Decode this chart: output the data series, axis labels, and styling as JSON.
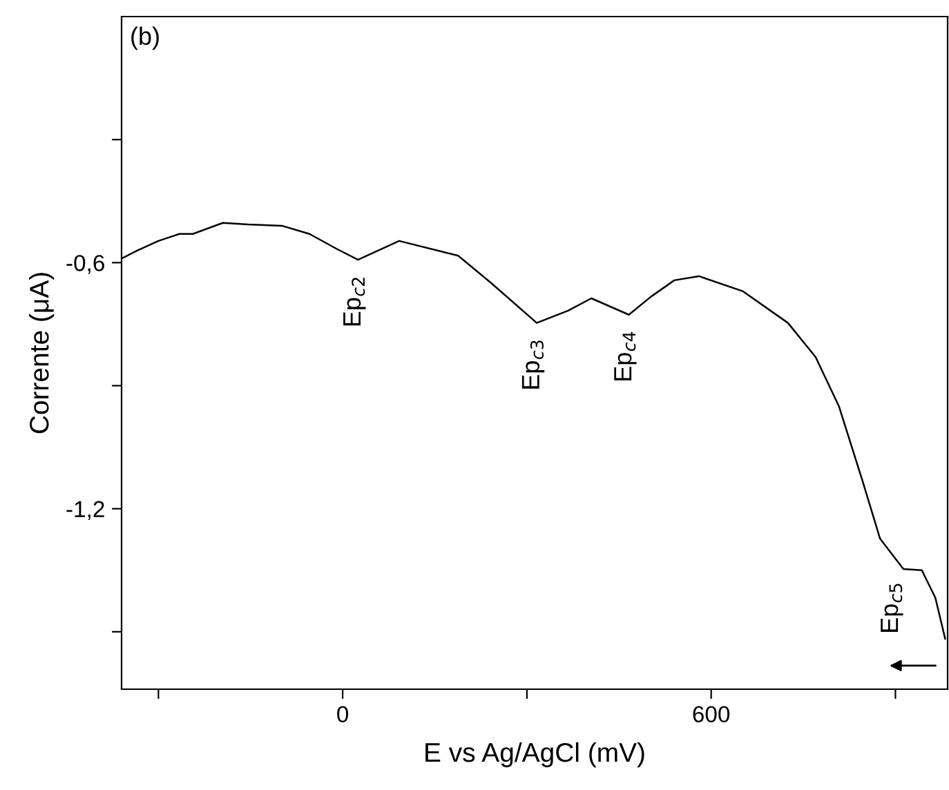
{
  "chart_data": {
    "type": "line",
    "xlabel": "E vs Ag/AgCl (mV)",
    "ylabel": "Corrente (μA)",
    "x": [
      -360,
      -334,
      -300,
      -266,
      -244,
      -195,
      -154,
      -99,
      -54,
      -9,
      25,
      92,
      188,
      242,
      316,
      367,
      405,
      466,
      502,
      540,
      580,
      652,
      725,
      770,
      808,
      846,
      875,
      913,
      943,
      965,
      981
    ],
    "series": [
      {
        "color": "#000000",
        "values": [
          -0.59,
          -0.57,
          -0.547,
          -0.53,
          -0.53,
          -0.503,
          -0.507,
          -0.51,
          -0.53,
          -0.567,
          -0.593,
          -0.547,
          -0.583,
          -0.65,
          -0.747,
          -0.717,
          -0.687,
          -0.727,
          -0.683,
          -0.643,
          -0.633,
          -0.67,
          -0.747,
          -0.83,
          -0.95,
          -1.13,
          -1.273,
          -1.347,
          -1.35,
          -1.417,
          -1.517
        ]
      }
    ],
    "xlim": [
      -360,
      985
    ],
    "ylim": [
      -1.64,
      0
    ],
    "xticks": [
      {
        "value": -300,
        "label": null
      },
      0,
      {
        "value": 300,
        "label": null
      },
      600,
      {
        "value": 900,
        "label": null
      }
    ],
    "yticks": [
      {
        "value": -1.5,
        "label": null
      },
      {
        "value": -1.2,
        "label": "-1,2"
      },
      {
        "value": -0.9,
        "label": null
      },
      {
        "value": -0.6,
        "label": "-0,6"
      },
      {
        "value": -0.3,
        "label": null
      }
    ],
    "annotations": [
      "(b)",
      {
        "text": "Ep$_{c2}$",
        "x": 25,
        "y": -0.593
      },
      {
        "text": "Ep$_{c3}$",
        "x": 316,
        "y": -0.747
      },
      {
        "text": "Ep$_{c4}$",
        "x": 466,
        "y": -0.727
      },
      {
        "text": "Ep$_{c5}$",
        "x": 900,
        "y": -1.34
      }
    ],
    "grid": false,
    "legend": false,
    "marker": "none",
    "line_style": "solid"
  }
}
